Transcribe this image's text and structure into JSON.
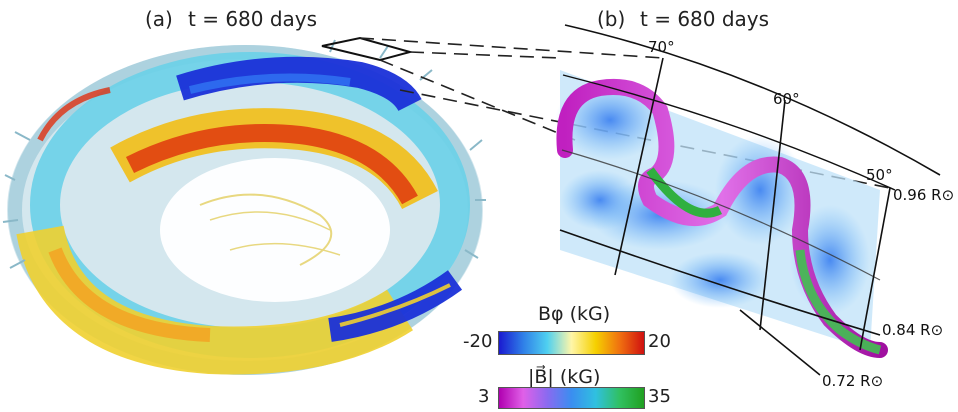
{
  "panel_a": {
    "label": "(a)",
    "time_label": "t = 680 days"
  },
  "panel_b": {
    "label": "(b)",
    "time_label": "t = 680 days",
    "latitudes": [
      "70°",
      "60°",
      "50°"
    ],
    "radii": [
      "0.96 R⊙",
      "0.84 R⊙",
      "0.72 R⊙"
    ]
  },
  "colorbar_bphi": {
    "title": "Bφ (kG)",
    "min": "-20",
    "max": "20",
    "colors": [
      "#1a1ad0",
      "#2f7fe8",
      "#4fd0f0",
      "#fff6a8",
      "#f5d000",
      "#f07010",
      "#d01010"
    ]
  },
  "colorbar_bmag": {
    "title": "|B⃗| (kG)",
    "min": "3",
    "max": "35",
    "colors": [
      "#b000b0",
      "#e060e8",
      "#8a6af0",
      "#3a8ef0",
      "#30c0e0",
      "#30c060",
      "#20a020"
    ]
  }
}
